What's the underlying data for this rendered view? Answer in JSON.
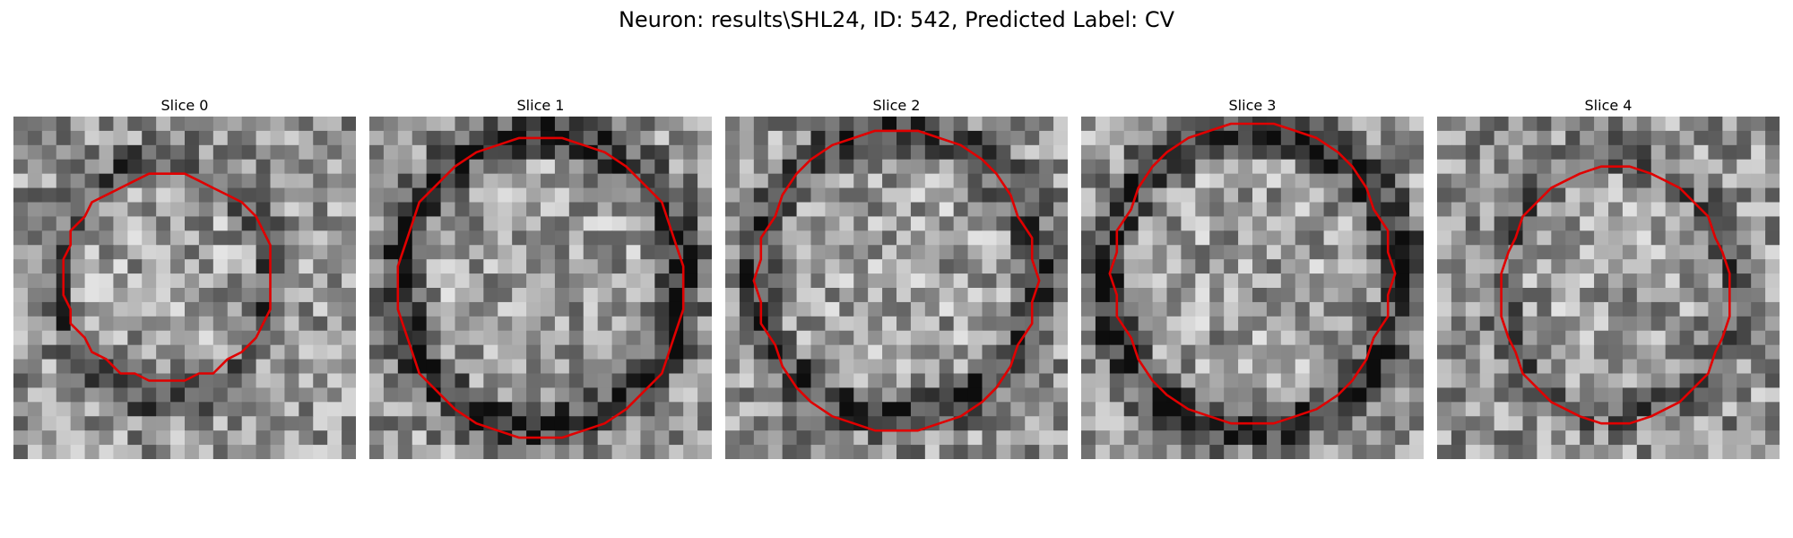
{
  "figure": {
    "title": "Neuron: results\\SHL24, ID: 542, Predicted Label: CV"
  },
  "panels": [
    {
      "title": "Slice 0"
    },
    {
      "title": "Slice 1"
    },
    {
      "title": "Slice 2"
    },
    {
      "title": "Slice 3"
    },
    {
      "title": "Slice 4"
    }
  ],
  "colors": {
    "roi_contour": "#e00000",
    "image_colormap": "grayscale"
  }
}
